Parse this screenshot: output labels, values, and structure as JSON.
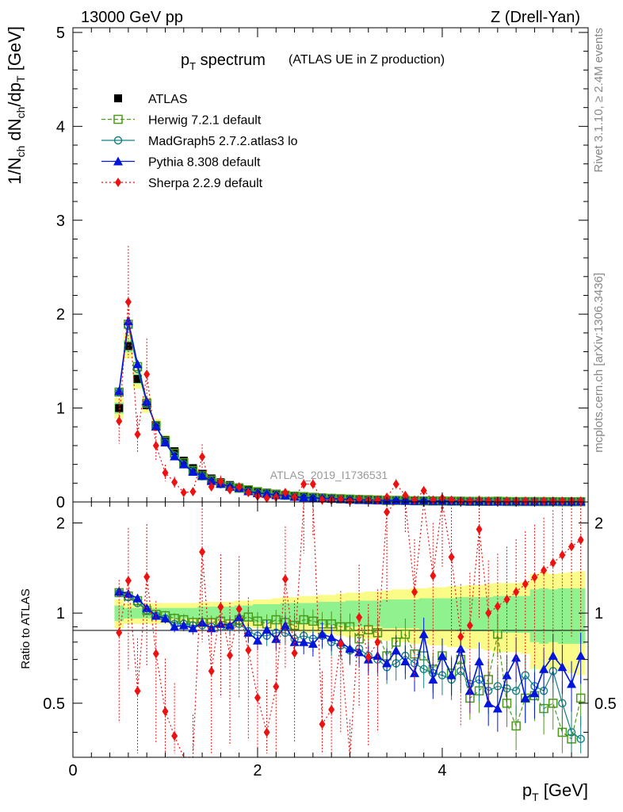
{
  "header": {
    "left": "13000 GeV pp",
    "right": "Z (Drell-Yan)"
  },
  "title": {
    "main": "p",
    "main_sub": "T",
    "main_rest": " spectrum",
    "note": "(ATLAS UE in Z production)"
  },
  "watermark": "ATLAS_2019_I1736531",
  "side_labels": {
    "rivet": "Rivet 3.1.10, ≥ 2.4M events",
    "mcplots": "mcplots.cern.ch [arXiv:1306.3436]"
  },
  "axes": {
    "ylabel_top": "1/N_ch dN_ch/dp_T [GeV]",
    "ylabel_bottom": "Ratio to ATLAS",
    "xlabel": "p_T [GeV]",
    "x_ticks": [
      "0",
      "2",
      "4"
    ],
    "y_ticks_top": [
      "0",
      "1",
      "2",
      "3",
      "4",
      "5"
    ],
    "y_ticks_bottom": [
      "0.5",
      "1",
      "2"
    ]
  },
  "chart_data": {
    "type": "line",
    "x": [
      0.5,
      0.6,
      0.7,
      0.8,
      0.9,
      1.0,
      1.1,
      1.2,
      1.3,
      1.4,
      1.5,
      1.6,
      1.7,
      1.8,
      1.9,
      2.0,
      2.1,
      2.2,
      2.3,
      2.4,
      2.5,
      2.6,
      2.7,
      2.8,
      2.9,
      3.0,
      3.1,
      3.2,
      3.3,
      3.4,
      3.5,
      3.6,
      3.7,
      3.8,
      3.9,
      4.0,
      4.1,
      4.2,
      4.3,
      4.4,
      4.5,
      4.6,
      4.7,
      4.8,
      4.9,
      5.0,
      5.1,
      5.2,
      5.3,
      5.4,
      5.5
    ],
    "xlim": [
      0,
      5.58
    ],
    "ylim_top": [
      0,
      5.05
    ],
    "ylim_ratio": [
      0.33,
      2.35
    ],
    "ratio_ticks_major": [
      0.5,
      1,
      2
    ],
    "series": [
      {
        "name": "ATLAS",
        "color": "#000000",
        "values": [
          1.0,
          1.66,
          1.31,
          1.03,
          0.82,
          0.66,
          0.54,
          0.44,
          0.36,
          0.3,
          0.25,
          0.21,
          0.18,
          0.155,
          0.133,
          0.115,
          0.1,
          0.088,
          0.077,
          0.068,
          0.06,
          0.053,
          0.047,
          0.042,
          0.038,
          0.034,
          0.031,
          0.028,
          0.025,
          0.023,
          0.021,
          0.019,
          0.017,
          0.016,
          0.015,
          0.014,
          0.013,
          0.012,
          0.011,
          0.0105,
          0.01,
          0.0095,
          0.009,
          0.0085,
          0.008,
          0.0076,
          0.0072,
          0.0068,
          0.0064,
          0.006,
          0.0057
        ]
      },
      {
        "name": "Herwig 7.2.1 default",
        "color": "#4a9a1a",
        "ratio": [
          1.17,
          1.14,
          1.1,
          1.02,
          0.99,
          0.98,
          0.96,
          0.95,
          0.93,
          0.93,
          0.93,
          0.94,
          0.92,
          0.95,
          0.97,
          0.94,
          0.92,
          0.95,
          0.93,
          0.91,
          0.95,
          0.94,
          0.92,
          0.92,
          0.9,
          0.9,
          0.82,
          0.88,
          0.86,
          0.72,
          0.8,
          0.85,
          0.73,
          0.72,
          0.65,
          0.72,
          0.63,
          0.7,
          0.52,
          0.55,
          0.6,
          0.85,
          0.5,
          0.42,
          0.52,
          0.53,
          0.48,
          0.5,
          0.4,
          0.38,
          0.52
        ]
      },
      {
        "name": "MadGraph5 2.7.2.atlas3 lo",
        "color": "#138080",
        "ratio": [
          1.17,
          1.13,
          1.08,
          1.02,
          0.98,
          0.96,
          0.92,
          0.92,
          0.91,
          0.91,
          0.9,
          0.9,
          0.9,
          0.92,
          0.87,
          0.84,
          0.84,
          0.86,
          0.86,
          0.82,
          0.84,
          0.82,
          0.84,
          0.8,
          0.78,
          0.75,
          0.76,
          0.72,
          0.7,
          0.66,
          0.68,
          0.72,
          0.68,
          0.65,
          0.63,
          0.62,
          0.6,
          0.64,
          0.58,
          0.6,
          0.55,
          0.57,
          0.56,
          0.55,
          0.62,
          0.57,
          0.55,
          0.64,
          0.5,
          0.4,
          0.38
        ]
      },
      {
        "name": "Pythia 8.308 default",
        "color": "#0015dc",
        "ratio": [
          1.18,
          1.16,
          1.12,
          1.04,
          0.98,
          0.96,
          0.9,
          0.91,
          0.89,
          0.93,
          0.89,
          0.92,
          0.91,
          0.97,
          0.86,
          0.81,
          0.88,
          0.82,
          0.91,
          0.8,
          0.8,
          0.79,
          0.85,
          0.83,
          0.8,
          0.76,
          0.74,
          0.7,
          0.72,
          0.68,
          0.75,
          0.69,
          0.63,
          0.85,
          0.6,
          0.72,
          0.62,
          0.76,
          0.55,
          0.69,
          0.5,
          0.48,
          0.62,
          0.71,
          0.52,
          0.54,
          0.65,
          0.72,
          0.66,
          0.58,
          0.72
        ]
      },
      {
        "name": "Sherpa 2.2.9 default",
        "color": "#ee1111",
        "values": [
          0.86,
          2.13,
          0.72,
          1.36,
          0.6,
          0.31,
          0.21,
          0.1,
          0.11,
          0.48,
          0.16,
          0.22,
          0.13,
          0.16,
          0.1,
          0.06,
          0.04,
          0.05,
          0.1,
          0.05,
          0.19,
          0.19,
          0.02,
          0.02,
          0.03,
          0.01,
          0.03,
          0.02,
          0.02,
          0.05,
          0.19,
          0.07,
          0.02,
          0.12,
          0.02,
          0.04,
          0.02,
          0.01,
          0.01,
          0.02,
          0.01,
          0.01,
          0.01,
          0.01,
          0.01,
          0.01,
          0.01,
          0.01,
          0.01,
          0.01,
          0.01
        ]
      }
    ],
    "band_inner_rel": [
      0.06,
      0.04,
      0.04,
      0.04,
      0.04,
      0.04,
      0.04,
      0.04,
      0.04,
      0.05,
      0.05,
      0.05,
      0.05,
      0.06,
      0.06,
      0.07,
      0.07,
      0.07,
      0.08,
      0.08,
      0.08,
      0.08,
      0.09,
      0.09,
      0.09,
      0.1,
      0.1,
      0.1,
      0.1,
      0.11,
      0.11,
      0.11,
      0.11,
      0.12,
      0.12,
      0.12,
      0.12,
      0.13,
      0.13,
      0.13,
      0.13,
      0.14,
      0.14,
      0.14,
      0.14,
      0.2,
      0.21,
      0.2,
      0.21,
      0.21,
      0.21
    ],
    "band_outer_rel": [
      0.11,
      0.08,
      0.08,
      0.08,
      0.08,
      0.08,
      0.08,
      0.08,
      0.08,
      0.09,
      0.09,
      0.09,
      0.09,
      0.1,
      0.1,
      0.11,
      0.11,
      0.12,
      0.13,
      0.13,
      0.14,
      0.14,
      0.15,
      0.15,
      0.16,
      0.17,
      0.17,
      0.18,
      0.18,
      0.19,
      0.2,
      0.2,
      0.21,
      0.21,
      0.22,
      0.22,
      0.23,
      0.23,
      0.24,
      0.24,
      0.25,
      0.26,
      0.26,
      0.26,
      0.27,
      0.35,
      0.37,
      0.35,
      0.36,
      0.37,
      0.38
    ],
    "band_colors": {
      "inner": "#8ff28f",
      "outer": "#fbfb88"
    }
  }
}
